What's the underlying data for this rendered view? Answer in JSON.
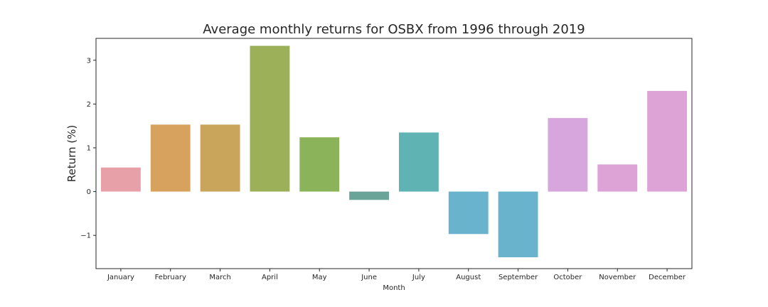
{
  "chart_data": {
    "type": "bar",
    "title": "Average monthly returns for OSBX from 1996 through 2019",
    "xlabel": "Month",
    "ylabel": "Return (%)",
    "categories": [
      "January",
      "February",
      "March",
      "April",
      "May",
      "June",
      "July",
      "August",
      "September",
      "October",
      "November",
      "December"
    ],
    "values": [
      0.55,
      1.53,
      1.53,
      3.33,
      1.24,
      -0.19,
      1.35,
      -0.97,
      -1.5,
      1.68,
      0.62,
      2.3
    ],
    "colors": [
      "#e8a0a8",
      "#d6a25e",
      "#c9a55c",
      "#9cb05a",
      "#8bb35a",
      "#6aa397",
      "#5fb3b3",
      "#6ab3cc",
      "#6ab3cc",
      "#d6a6dc",
      "#dda2d6",
      "#dda2d6"
    ],
    "ylim": [
      -1.76,
      3.5
    ],
    "yticks": [
      -1,
      0,
      1,
      2,
      3
    ],
    "ytick_labels": [
      "−1",
      "0",
      "1",
      "2",
      "3"
    ],
    "grid": false,
    "legend": "none"
  }
}
